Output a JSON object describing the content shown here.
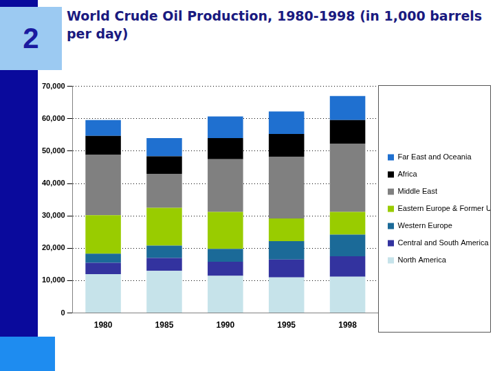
{
  "page_number": "2",
  "chart_data": {
    "type": "bar",
    "title": "World Crude Oil Production, 1980-1998 (in 1,000 barrels per day)",
    "categories": [
      "1980",
      "1985",
      "1990",
      "1995",
      "1998"
    ],
    "series": [
      {
        "name": "North America",
        "color": "#c6e3ea",
        "values": [
          12000,
          13000,
          11500,
          11000,
          11200
        ]
      },
      {
        "name": "Central and South America",
        "color": "#33339f",
        "values": [
          3500,
          4000,
          4300,
          5500,
          6300
        ]
      },
      {
        "name": "Western Europe",
        "color": "#1b6a98",
        "values": [
          2800,
          3800,
          4000,
          5700,
          6700
        ]
      },
      {
        "name": "Eastern Europe & Former U.S.S.R.",
        "color": "#99cc00",
        "values": [
          11900,
          11700,
          11400,
          7000,
          7000
        ]
      },
      {
        "name": "Middle East",
        "color": "#808080",
        "values": [
          18600,
          10500,
          16300,
          19100,
          21100
        ]
      },
      {
        "name": "Africa",
        "color": "#000000",
        "values": [
          5900,
          5400,
          6500,
          7000,
          7300
        ]
      },
      {
        "name": "Far East and Oceania",
        "color": "#1f70d0",
        "values": [
          4900,
          5600,
          6700,
          6900,
          7400
        ]
      }
    ],
    "stacked": true,
    "ylim": [
      0,
      70000
    ],
    "yticks": [
      0,
      {
        "value": 10000,
        "label": "10,000"
      },
      {
        "value": 20000,
        "label": "20,000"
      },
      {
        "value": 30000,
        "label": "30,000"
      },
      {
        "value": 40000,
        "label": "40,000"
      },
      {
        "value": 50000,
        "label": "50,000"
      },
      {
        "value": 60000,
        "label": "60,000"
      },
      {
        "value": 70000,
        "label": "70,000"
      }
    ],
    "grid": true,
    "legend": "right"
  }
}
